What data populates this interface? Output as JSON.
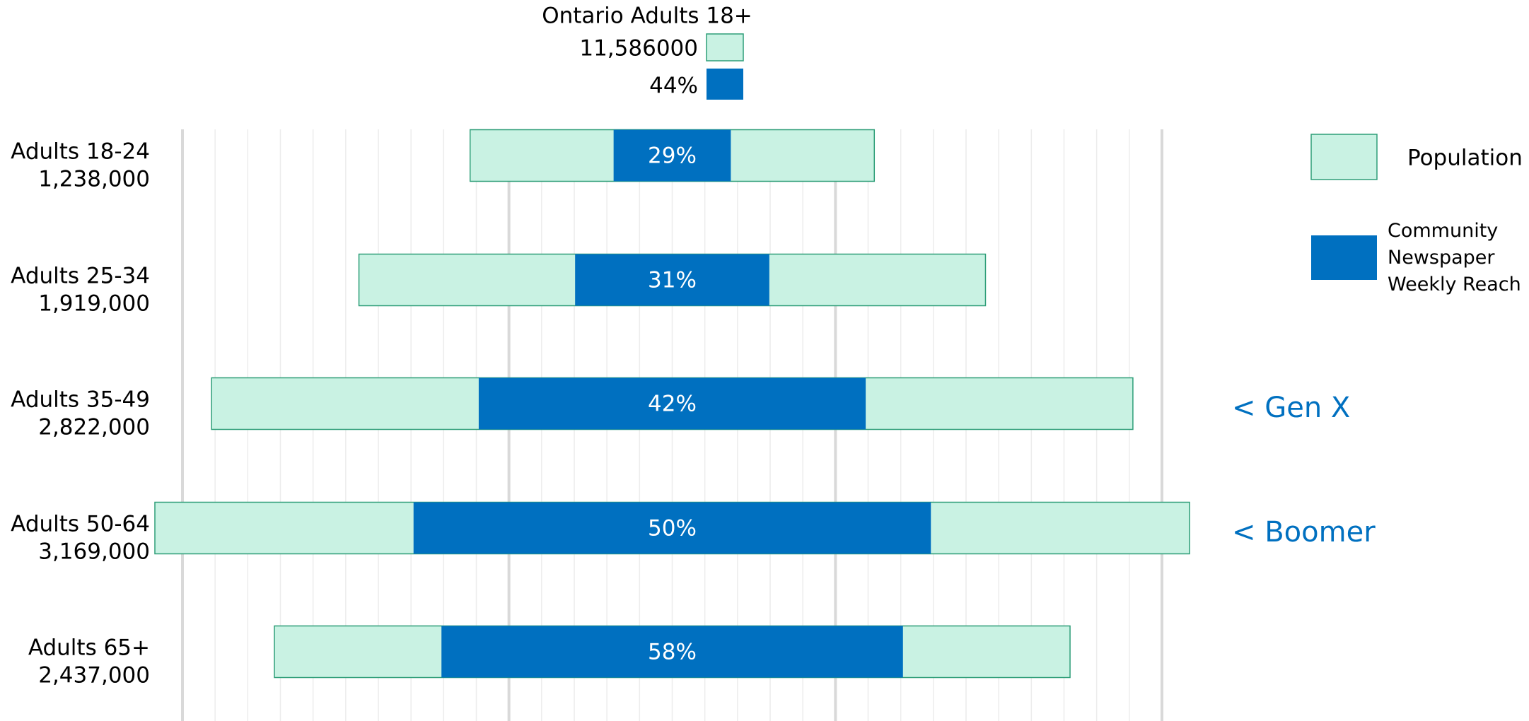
{
  "chart_data": {
    "type": "centered-bar",
    "summary": {
      "title": "Ontario Adults 18+",
      "population": {
        "value": 11586000,
        "label": "11,586000"
      },
      "reach": {
        "value": 44,
        "label": "44%"
      }
    },
    "categories": [
      "Adults 18-24",
      "Adults 25-34",
      "Adults 35-49",
      "Adults 50-64",
      "Adults 65+"
    ],
    "series": [
      {
        "name": "Population",
        "color": "#c9f2e3",
        "values": [
          1238000,
          1919000,
          2822000,
          3169000,
          2437000
        ],
        "value_labels": [
          "1,238,000",
          "1,919,000",
          "2,822,000",
          "3,169,000",
          "2,437,000"
        ]
      },
      {
        "name": "Community Newspaper Weekly Reach",
        "color": "#0070c0",
        "values": [
          29,
          31,
          42,
          50,
          58
        ],
        "value_labels": [
          "29%",
          "31%",
          "42%",
          "50%",
          "58%"
        ]
      }
    ],
    "annotations": [
      null,
      null,
      "< Gen X",
      "< Boomer",
      null
    ],
    "xlim": [
      -1500000,
      1500000
    ],
    "xticks": [
      -1500000,
      -1400000,
      -1300000,
      -1200000,
      -1100000,
      -1000000,
      -900000,
      -800000,
      -700000,
      -600000,
      -500000,
      -400000,
      -300000,
      -200000,
      -100000,
      0,
      100000,
      200000,
      300000,
      400000,
      500000,
      600000,
      700000,
      800000,
      900000,
      1000000,
      1100000,
      1200000,
      1300000,
      1400000,
      1500000
    ],
    "grid": true
  }
}
